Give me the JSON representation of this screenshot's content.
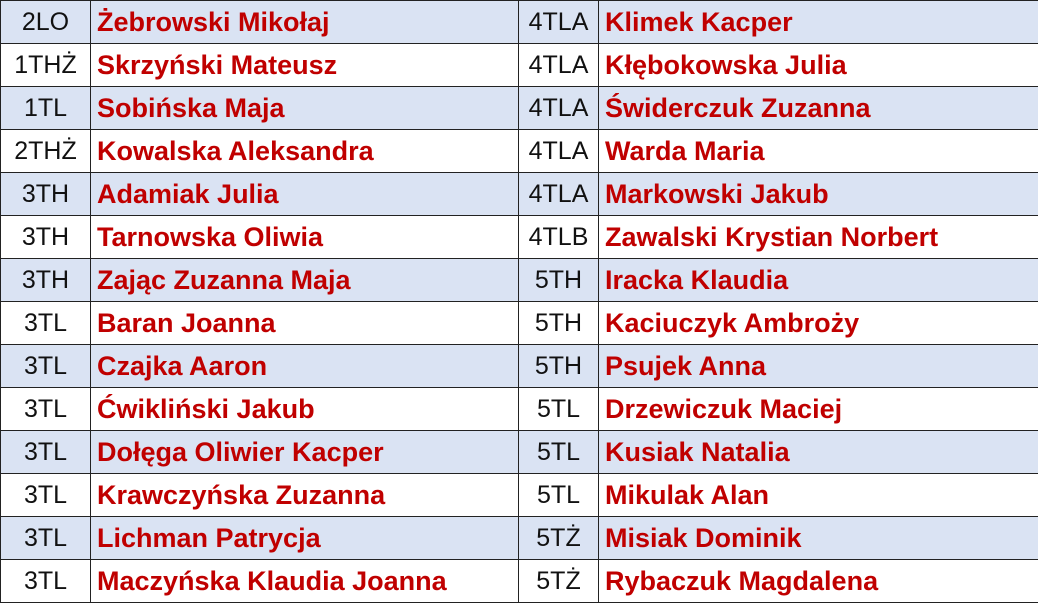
{
  "colors": {
    "stripe": "#dae3f3",
    "name_text": "#c00000"
  },
  "rows": [
    {
      "left": {
        "cls": "2LO",
        "name": "Żebrowski Mikołaj"
      },
      "right": {
        "cls": "4TLA",
        "name": "Klimek Kacper"
      }
    },
    {
      "left": {
        "cls": "1THŻ",
        "name": "Skrzyński Mateusz"
      },
      "right": {
        "cls": "4TLA",
        "name": "Kłębokowska Julia"
      }
    },
    {
      "left": {
        "cls": "1TL",
        "name": "Sobińska Maja"
      },
      "right": {
        "cls": "4TLA",
        "name": "Świderczuk Zuzanna"
      }
    },
    {
      "left": {
        "cls": "2THŻ",
        "name": "Kowalska Aleksandra"
      },
      "right": {
        "cls": "4TLA",
        "name": "Warda Maria"
      }
    },
    {
      "left": {
        "cls": "3TH",
        "name": "Adamiak Julia"
      },
      "right": {
        "cls": "4TLA",
        "name": "Markowski Jakub"
      }
    },
    {
      "left": {
        "cls": "3TH",
        "name": "Tarnowska Oliwia"
      },
      "right": {
        "cls": "4TLB",
        "name": "Zawalski Krystian Norbert"
      }
    },
    {
      "left": {
        "cls": "3TH",
        "name": "Zając Zuzanna Maja"
      },
      "right": {
        "cls": "5TH",
        "name": "Iracka Klaudia"
      }
    },
    {
      "left": {
        "cls": "3TL",
        "name": "Baran Joanna"
      },
      "right": {
        "cls": "5TH",
        "name": "Kaciuczyk Ambroży"
      }
    },
    {
      "left": {
        "cls": "3TL",
        "name": "Czajka Aaron"
      },
      "right": {
        "cls": "5TH",
        "name": "Psujek Anna"
      }
    },
    {
      "left": {
        "cls": "3TL",
        "name": "Ćwikliński Jakub"
      },
      "right": {
        "cls": "5TL",
        "name": "Drzewiczuk Maciej"
      }
    },
    {
      "left": {
        "cls": "3TL",
        "name": "Dołęga Oliwier Kacper"
      },
      "right": {
        "cls": "5TL",
        "name": "Kusiak Natalia"
      }
    },
    {
      "left": {
        "cls": "3TL",
        "name": "Krawczyńska Zuzanna"
      },
      "right": {
        "cls": "5TL",
        "name": "Mikulak Alan"
      }
    },
    {
      "left": {
        "cls": "3TL",
        "name": "Lichman Patrycja"
      },
      "right": {
        "cls": "5TŻ",
        "name": "Misiak Dominik"
      }
    },
    {
      "left": {
        "cls": "3TL",
        "name": "Maczyńska Klaudia Joanna"
      },
      "right": {
        "cls": "5TŻ",
        "name": "Rybaczuk Magdalena"
      }
    }
  ]
}
